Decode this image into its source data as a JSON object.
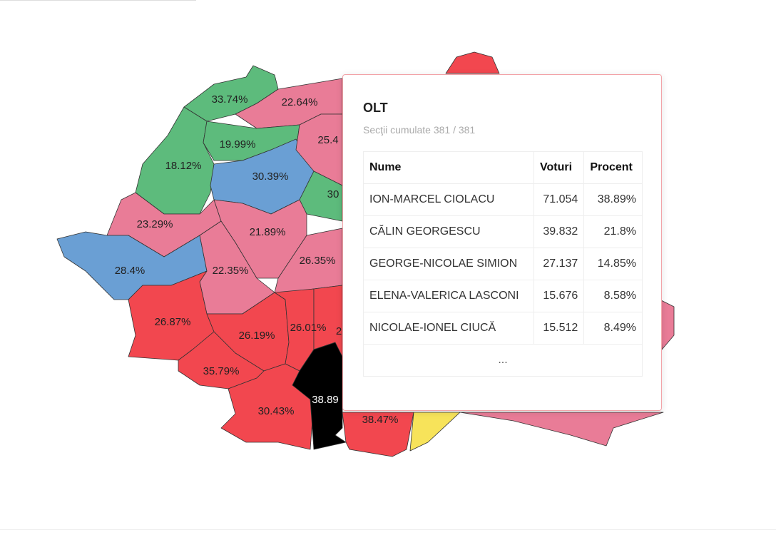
{
  "map": {
    "region_labels": [
      "33.74%",
      "22.64%",
      "25.4",
      "19.99%",
      "18.12%",
      "30.39%",
      "30",
      "23.29%",
      "21.89%",
      "28.4%",
      "22.35%",
      "26.35%",
      "26.87%",
      "26.19%",
      "26.01%",
      "2",
      "35.79%",
      "38.89",
      "30.43%",
      "38.47%"
    ]
  },
  "tooltip": {
    "title": "OLT",
    "subtitle": "Secţii cumulate 381 / 381",
    "table": {
      "header": [
        "Nume",
        "Voturi",
        "Procent"
      ],
      "rows": [
        [
          "ION-MARCEL CIOLACU",
          "71.054",
          "38.89%"
        ],
        [
          "CĂLIN GEORGESCU",
          "39.832",
          "21.8%"
        ],
        [
          "GEORGE-NICOLAE SIMION",
          "27.137",
          "14.85%"
        ],
        [
          "ELENA-VALERICA LASCONI",
          "15.676",
          "8.58%"
        ],
        [
          "NICOLAE-IONEL CIUCĂ",
          "15.512",
          "8.49%"
        ]
      ],
      "more": "..."
    }
  }
}
